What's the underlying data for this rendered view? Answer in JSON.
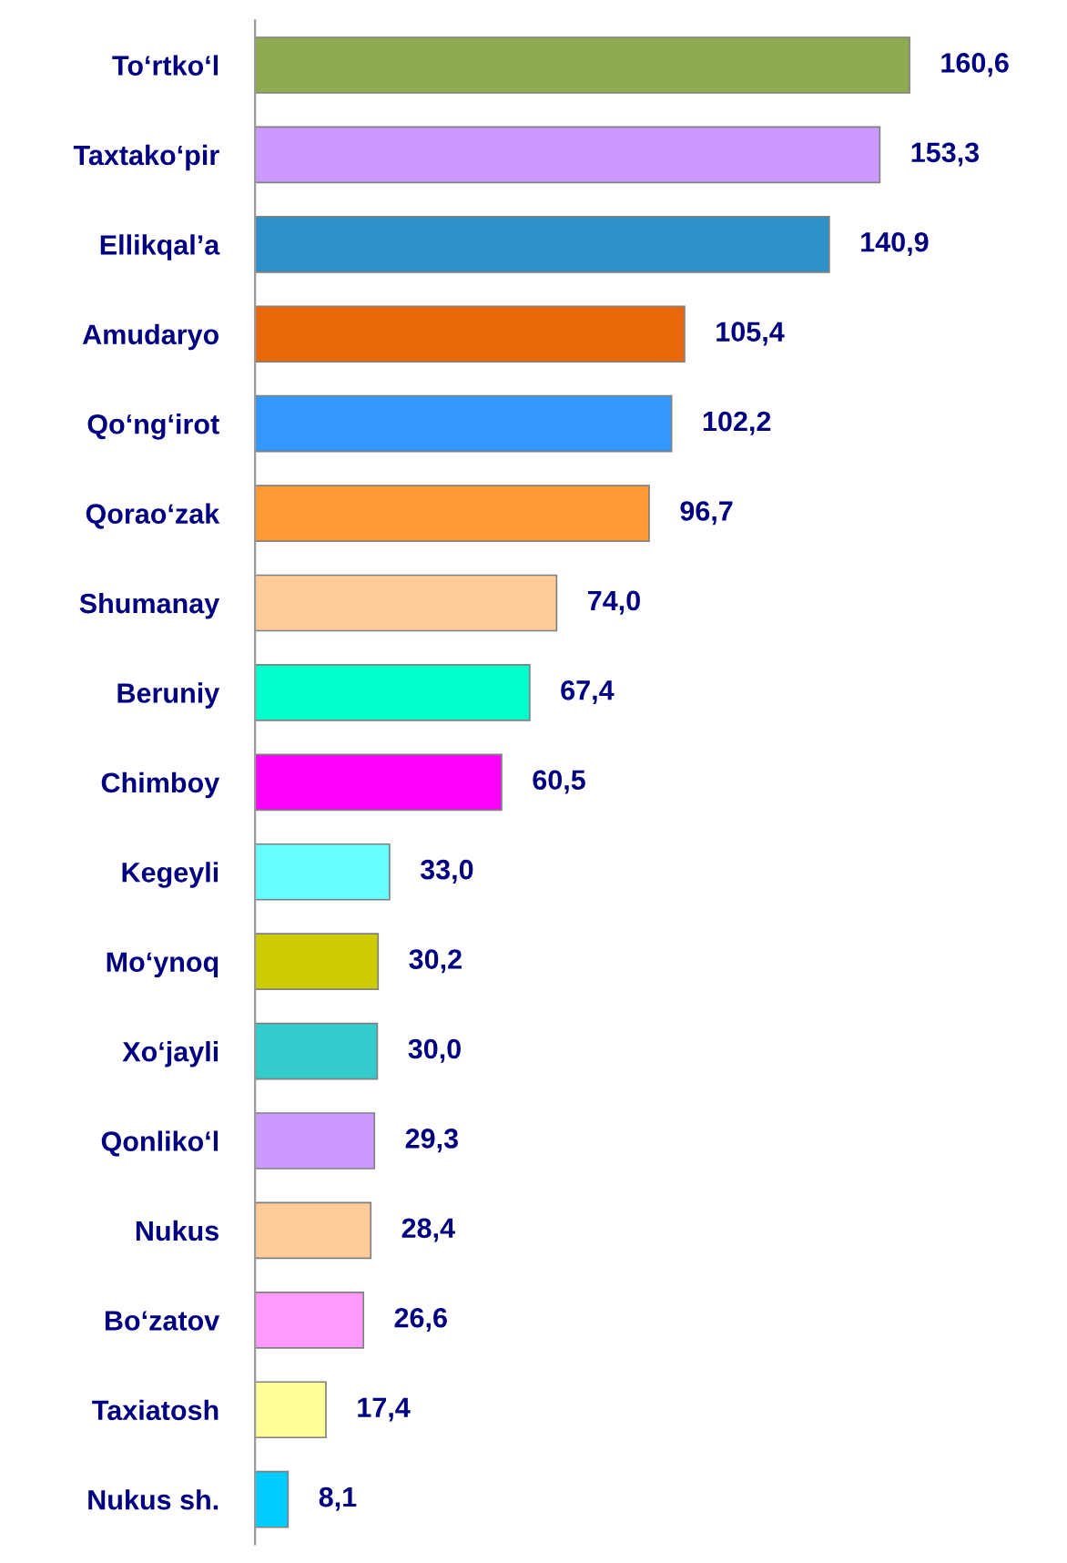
{
  "chart_data": {
    "type": "bar",
    "orientation": "horizontal",
    "categories": [
      "To‘rtko‘l",
      "Taxtako‘pir",
      "Ellikqal’a",
      "Amudaryo",
      "Qo‘ng‘irot",
      "Qorao‘zak",
      "Shumanay",
      "Beruniy",
      "Chimboy",
      "Kegeyli",
      "Mo‘ynoq",
      "Xo‘jayli",
      "Qonliko‘l",
      "Nukus",
      "Bo‘zatov",
      "Taxiatosh",
      "Nukus sh."
    ],
    "values": [
      160.6,
      153.3,
      140.9,
      105.4,
      102.2,
      96.7,
      74.0,
      67.4,
      60.5,
      33.0,
      30.2,
      30.0,
      29.3,
      28.4,
      26.6,
      17.4,
      8.1
    ],
    "value_labels": [
      "160,6",
      "153,3",
      "140,9",
      "105,4",
      "102,2",
      "96,7",
      "74,0",
      "67,4",
      "60,5",
      "33,0",
      "30,2",
      "30,0",
      "29,3",
      "28,4",
      "26,6",
      "17,4",
      "8,1"
    ],
    "colors": [
      "#8faa4f",
      "#cc99ff",
      "#2e90c8",
      "#e8680a",
      "#3399ff",
      "#ff9933",
      "#ffcc99",
      "#00ffcc",
      "#ff00ff",
      "#66ffff",
      "#cccc00",
      "#33cccc",
      "#cc99ff",
      "#ffcc99",
      "#ff99ff",
      "#ffff99",
      "#00ccff"
    ],
    "grid": false,
    "legend": false
  }
}
